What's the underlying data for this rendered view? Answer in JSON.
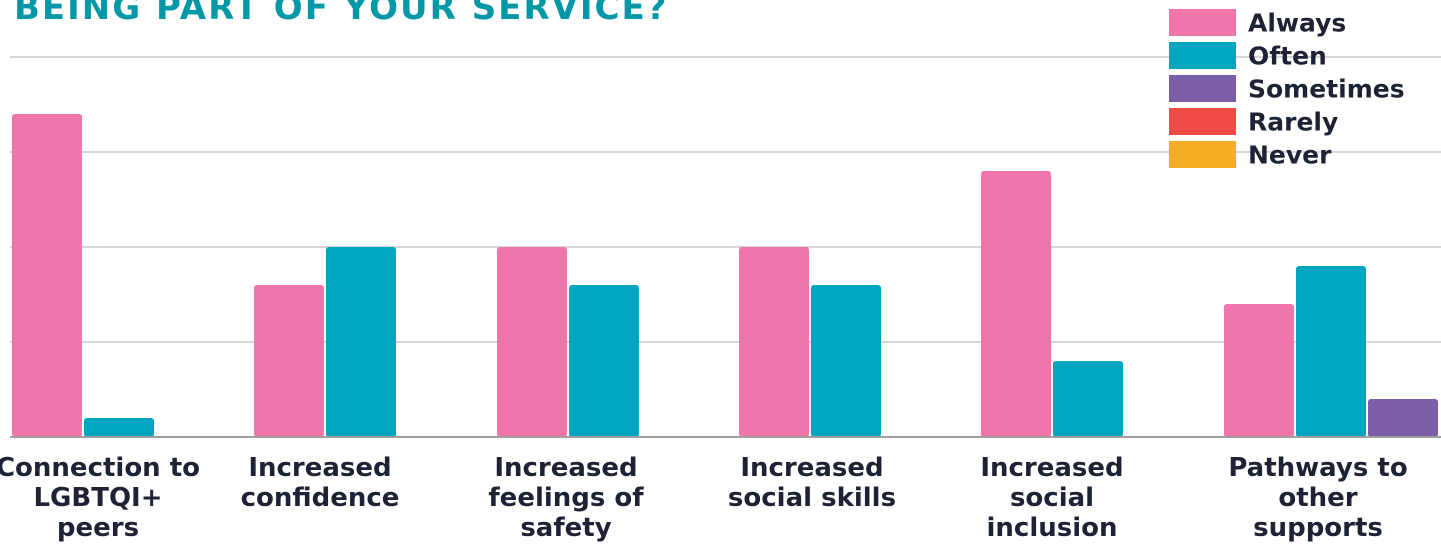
{
  "title": "BEING PART OF YOUR SERVICE?",
  "colors": {
    "Always": "#f075ab",
    "Often": "#00a6c0",
    "Sometimes": "#7a5ea8",
    "Rarely": "#ee4b47",
    "Never": "#f7ac25",
    "title": "#0097a7",
    "text": "#1e2235",
    "grid": "#bdbdbd"
  },
  "chart_data": {
    "type": "bar",
    "title": "BEING PART OF YOUR SERVICE?",
    "xlabel": "",
    "ylabel": "",
    "ylim": [
      0,
      20
    ],
    "grid": true,
    "legend_position": "top-right",
    "categories": [
      "Connection to LGBTQI+ peers",
      "Increased confidence",
      "Increased feelings of safety",
      "Increased social skills",
      "Increased social inclusion",
      "Pathways to other supports"
    ],
    "series": [
      {
        "name": "Always",
        "values": [
          17,
          8,
          10,
          10,
          14,
          7
        ]
      },
      {
        "name": "Often",
        "values": [
          1,
          10,
          8,
          8,
          4,
          9
        ]
      },
      {
        "name": "Sometimes",
        "values": [
          0,
          0,
          0,
          0,
          0,
          2
        ]
      },
      {
        "name": "Rarely",
        "values": [
          0,
          0,
          0,
          0,
          0,
          0
        ]
      },
      {
        "name": "Never",
        "values": [
          0,
          0,
          0,
          0,
          0,
          0
        ]
      }
    ]
  }
}
